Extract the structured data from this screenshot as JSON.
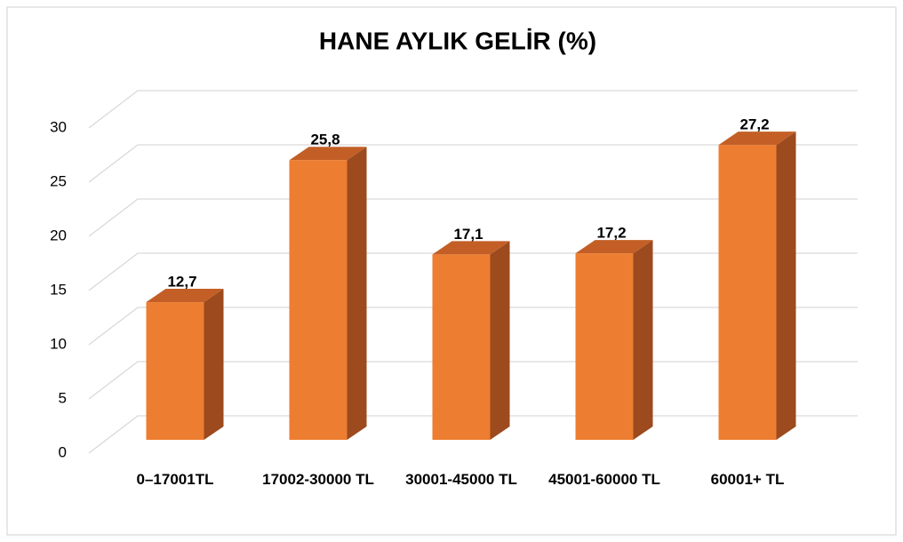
{
  "chart_data": {
    "type": "bar3d",
    "title": "HANE AYLIK GELİR (%)",
    "categories": [
      "0–17001TL",
      "17002-30000 TL",
      "30001-45000 TL",
      "45001-60000 TL",
      "60001+ TL"
    ],
    "values": [
      12.7,
      25.8,
      17.1,
      17.2,
      27.2
    ],
    "value_labels": [
      "12,7",
      "25,8",
      "17,1",
      "17,2",
      "27,2"
    ],
    "color": "#ed7d31",
    "ylim": [
      0,
      30
    ],
    "yticks": [
      0,
      5,
      10,
      15,
      20,
      25,
      30
    ],
    "grid": true
  }
}
